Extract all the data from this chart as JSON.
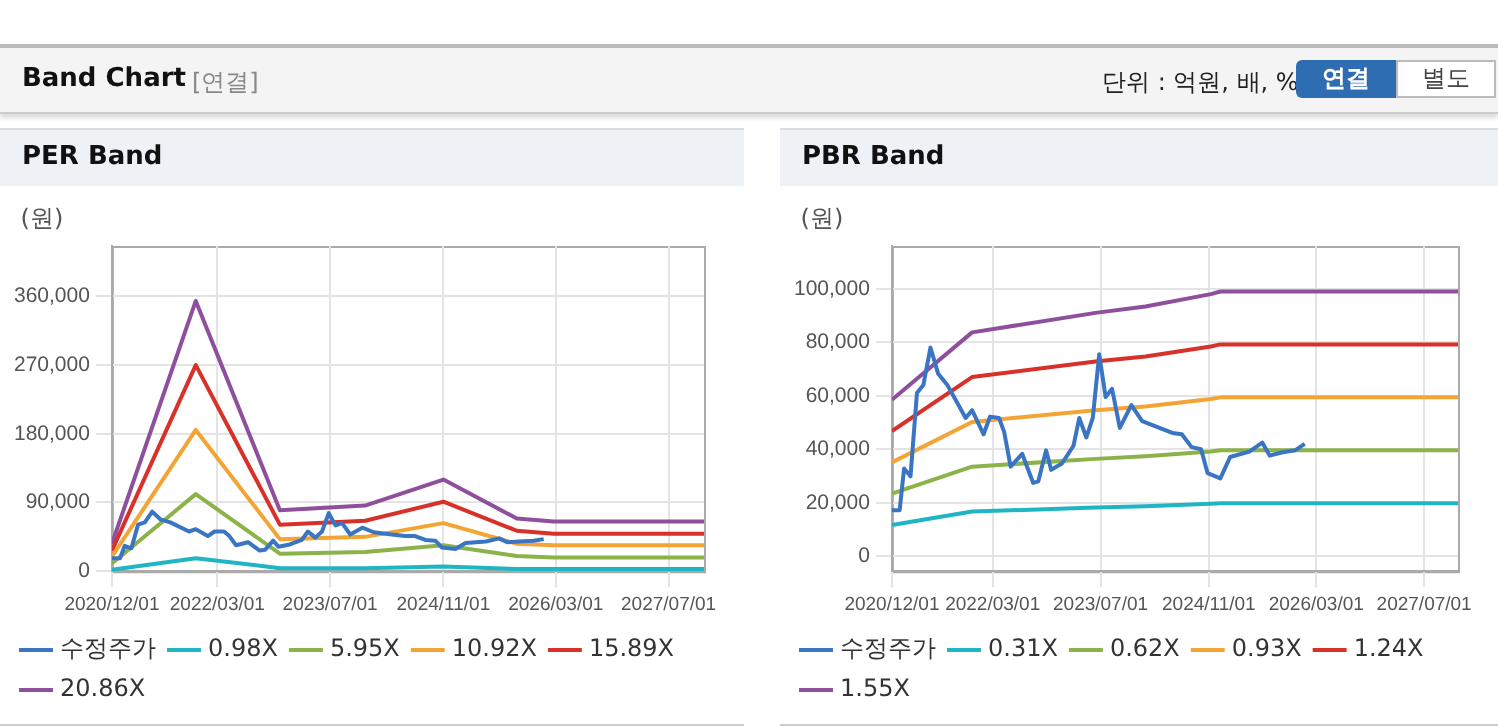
{
  "chart_data": [
    {
      "type": "line",
      "title": "PER Band",
      "ylabel": "(원)",
      "annotations": [
        "Band Chart",
        "[연결]",
        "단위 : 억원, 배, %",
        "연결",
        "별도"
      ],
      "grid": true,
      "legend": "bottom",
      "marker": "none",
      "line_style": "solid",
      "xlim": [
        "2020-12-01",
        "2027-12-01"
      ],
      "xticks": [
        {
          "value": "2020-12-01",
          "label": "2020/12/01"
        },
        {
          "value": "2022-03-01",
          "label": "2022/03/01"
        },
        {
          "value": "2023-07-01",
          "label": "2023/07/01"
        },
        {
          "value": "2024-11-01",
          "label": "2024/11/01"
        },
        {
          "value": "2026-03-01",
          "label": "2026/03/01"
        },
        {
          "value": "2027-07-01",
          "label": "2027/07/01"
        }
      ],
      "ylim": [
        0,
        426000
      ],
      "yticks": [
        0,
        {
          "value": 90000,
          "label": "90,000"
        },
        {
          "value": 180000,
          "label": "180,000"
        },
        {
          "value": 270000,
          "label": "270,000"
        },
        {
          "value": 360000,
          "label": "360,000"
        }
      ],
      "series": [
        {
          "name": "수정주가",
          "color": "#3a75c4",
          "x": [
            "2020-12-01",
            "2021-01-05",
            "2021-01-25",
            "2021-02-23",
            "2021-03-24",
            "2021-04-22",
            "2021-05-24",
            "2021-06-28",
            "2021-08-10",
            "2021-10-30",
            "2021-11-28",
            "2022-01-19",
            "2022-02-17",
            "2022-03-30",
            "2022-04-22",
            "2022-05-21",
            "2022-07-12",
            "2022-08-31",
            "2022-09-23",
            "2022-10-28",
            "2022-11-20",
            "2023-01-08",
            "2023-03-01",
            "2023-03-27",
            "2023-04-28",
            "2023-05-27",
            "2023-06-25",
            "2023-07-24",
            "2023-08-22",
            "2023-09-26",
            "2023-11-17",
            "2024-01-05",
            "2024-03-23",
            "2024-05-20",
            "2024-07-02",
            "2024-08-15",
            "2024-09-27",
            "2024-10-26",
            "2024-12-23",
            "2025-02-05",
            "2025-05-03",
            "2025-06-30",
            "2025-08-03",
            "2025-09-25",
            "2025-11-25",
            "2026-01-08"
          ],
          "values": [
            17000,
            17000,
            33000,
            30000,
            61000,
            64000,
            78000,
            68000,
            64000,
            52000,
            55000,
            46000,
            52000,
            52000,
            46000,
            34000,
            38000,
            27000,
            28000,
            40000,
            32000,
            35000,
            41000,
            52000,
            44000,
            52000,
            76000,
            60000,
            63000,
            48000,
            57000,
            51000,
            48000,
            46000,
            46000,
            41000,
            40000,
            31000,
            29000,
            37000,
            39000,
            43000,
            38000,
            39000,
            40000,
            42000
          ]
        },
        {
          "name": "0.98X",
          "color": "#1fb5c4",
          "x": [
            "2020-12-01",
            "2021-11-28",
            "2022-11-26",
            "2023-11-29",
            "2024-11-01",
            "2025-09-14",
            "2026-02-20",
            "2027-12-01"
          ],
          "values": [
            2000,
            17000,
            4000,
            4000,
            6000,
            3000,
            3000,
            3000
          ]
        },
        {
          "name": "5.95X",
          "color": "#8bb34a",
          "x": [
            "2020-12-01",
            "2021-11-28",
            "2022-11-26",
            "2023-11-29",
            "2024-11-01",
            "2025-09-14",
            "2026-02-20",
            "2027-12-01"
          ],
          "values": [
            10000,
            101000,
            23000,
            25000,
            34000,
            20000,
            18000,
            18000
          ]
        },
        {
          "name": "10.92X",
          "color": "#f2a535",
          "x": [
            "2020-12-01",
            "2021-11-28",
            "2022-11-26",
            "2023-11-29",
            "2024-11-01",
            "2025-09-14",
            "2026-02-20",
            "2027-12-01"
          ],
          "values": [
            19000,
            185000,
            42000,
            45000,
            63000,
            36000,
            34000,
            34000
          ]
        },
        {
          "name": "15.89X",
          "color": "#d8312a",
          "x": [
            "2020-12-01",
            "2021-11-28",
            "2022-11-26",
            "2023-11-29",
            "2024-11-01",
            "2025-09-14",
            "2026-02-20",
            "2027-12-01"
          ],
          "values": [
            27000,
            270000,
            61000,
            66000,
            91000,
            53000,
            49000,
            49000
          ]
        },
        {
          "name": "20.86X",
          "color": "#8e4f9c",
          "x": [
            "2020-12-01",
            "2021-11-28",
            "2022-11-26",
            "2023-11-29",
            "2024-11-01",
            "2025-09-14",
            "2026-02-20",
            "2027-12-01"
          ],
          "values": [
            36000,
            354000,
            80000,
            86000,
            120000,
            69000,
            65000,
            65000
          ]
        }
      ]
    },
    {
      "type": "line",
      "title": "PBR Band",
      "ylabel": "(원)",
      "grid": true,
      "legend": "bottom",
      "marker": "none",
      "line_style": "solid",
      "xlim": [
        "2020-12-01",
        "2027-12-01"
      ],
      "xticks": [
        {
          "value": "2020-12-01",
          "label": "2020/12/01"
        },
        {
          "value": "2022-03-01",
          "label": "2022/03/01"
        },
        {
          "value": "2023-07-01",
          "label": "2023/07/01"
        },
        {
          "value": "2024-11-01",
          "label": "2024/11/01"
        },
        {
          "value": "2026-03-01",
          "label": "2026/03/01"
        },
        {
          "value": "2027-07-01",
          "label": "2027/07/01"
        }
      ],
      "ylim": [
        -5600,
        116000
      ],
      "yticks": [
        0,
        {
          "value": 20000,
          "label": "20,000"
        },
        {
          "value": 40000,
          "label": "40,000"
        },
        {
          "value": 60000,
          "label": "60,000"
        },
        {
          "value": 80000,
          "label": "80,000"
        },
        {
          "value": 100000,
          "label": "100,000"
        }
      ],
      "series": [
        {
          "name": "수정주가",
          "color": "#3a75c4",
          "x": [
            "2020-12-01",
            "2021-01-05",
            "2021-01-25",
            "2021-02-23",
            "2021-03-24",
            "2021-04-22",
            "2021-05-24",
            "2021-06-28",
            "2021-08-10",
            "2021-10-30",
            "2021-11-28",
            "2022-01-19",
            "2022-02-17",
            "2022-03-30",
            "2022-04-22",
            "2022-05-21",
            "2022-07-12",
            "2022-08-31",
            "2022-09-23",
            "2022-10-28",
            "2022-11-20",
            "2023-01-08",
            "2023-03-01",
            "2023-03-27",
            "2023-04-28",
            "2023-05-27",
            "2023-06-25",
            "2023-07-24",
            "2023-08-22",
            "2023-09-26",
            "2023-11-17",
            "2024-01-05",
            "2024-03-23",
            "2024-05-20",
            "2024-07-02",
            "2024-08-15",
            "2024-09-27",
            "2024-10-26",
            "2024-12-23",
            "2025-02-05",
            "2025-05-03",
            "2025-06-30",
            "2025-08-03",
            "2025-09-25",
            "2025-11-25",
            "2026-01-08"
          ],
          "values": [
            17200,
            17200,
            32800,
            29900,
            61000,
            64000,
            78000,
            68200,
            63800,
            51700,
            54600,
            45600,
            52200,
            51700,
            46400,
            33500,
            38300,
            27400,
            28000,
            39600,
            32300,
            34700,
            41300,
            51700,
            44400,
            51700,
            75500,
            59500,
            62600,
            48000,
            56500,
            50500,
            48000,
            46100,
            45600,
            40800,
            40000,
            31100,
            29100,
            37100,
            39100,
            42500,
            37600,
            38800,
            39600,
            42000
          ]
        },
        {
          "name": "0.31X",
          "color": "#1fb5c4",
          "x": [
            "2020-12-01",
            "2021-11-28",
            "2023-06-08",
            "2024-01-20",
            "2024-11-10",
            "2024-12-23",
            "2027-12-01"
          ],
          "values": [
            11700,
            16700,
            18200,
            18700,
            19600,
            19800,
            19800
          ]
        },
        {
          "name": "0.62X",
          "color": "#8bb34a",
          "x": [
            "2020-12-01",
            "2021-11-28",
            "2023-06-08",
            "2024-01-20",
            "2024-11-10",
            "2024-12-23",
            "2027-12-01"
          ],
          "values": [
            23400,
            33500,
            36400,
            37400,
            39200,
            39600,
            39600
          ]
        },
        {
          "name": "0.93X",
          "color": "#f2a535",
          "x": [
            "2020-12-01",
            "2021-11-28",
            "2023-06-08",
            "2024-01-20",
            "2024-11-10",
            "2024-12-23",
            "2027-12-01"
          ],
          "values": [
            35100,
            50200,
            54600,
            56000,
            58800,
            59400,
            59400
          ]
        },
        {
          "name": "1.24X",
          "color": "#d8312a",
          "x": [
            "2020-12-01",
            "2021-11-28",
            "2023-06-08",
            "2024-01-20",
            "2024-11-10",
            "2024-12-23",
            "2027-12-01"
          ],
          "values": [
            46800,
            67000,
            72800,
            74700,
            78400,
            79200,
            79200
          ]
        },
        {
          "name": "1.55X",
          "color": "#8e4f9c",
          "x": [
            "2020-12-01",
            "2021-11-28",
            "2023-06-08",
            "2024-01-20",
            "2024-11-10",
            "2024-12-23",
            "2027-12-01"
          ],
          "values": [
            58500,
            83700,
            91000,
            93400,
            98000,
            99000,
            99000
          ]
        }
      ]
    }
  ]
}
